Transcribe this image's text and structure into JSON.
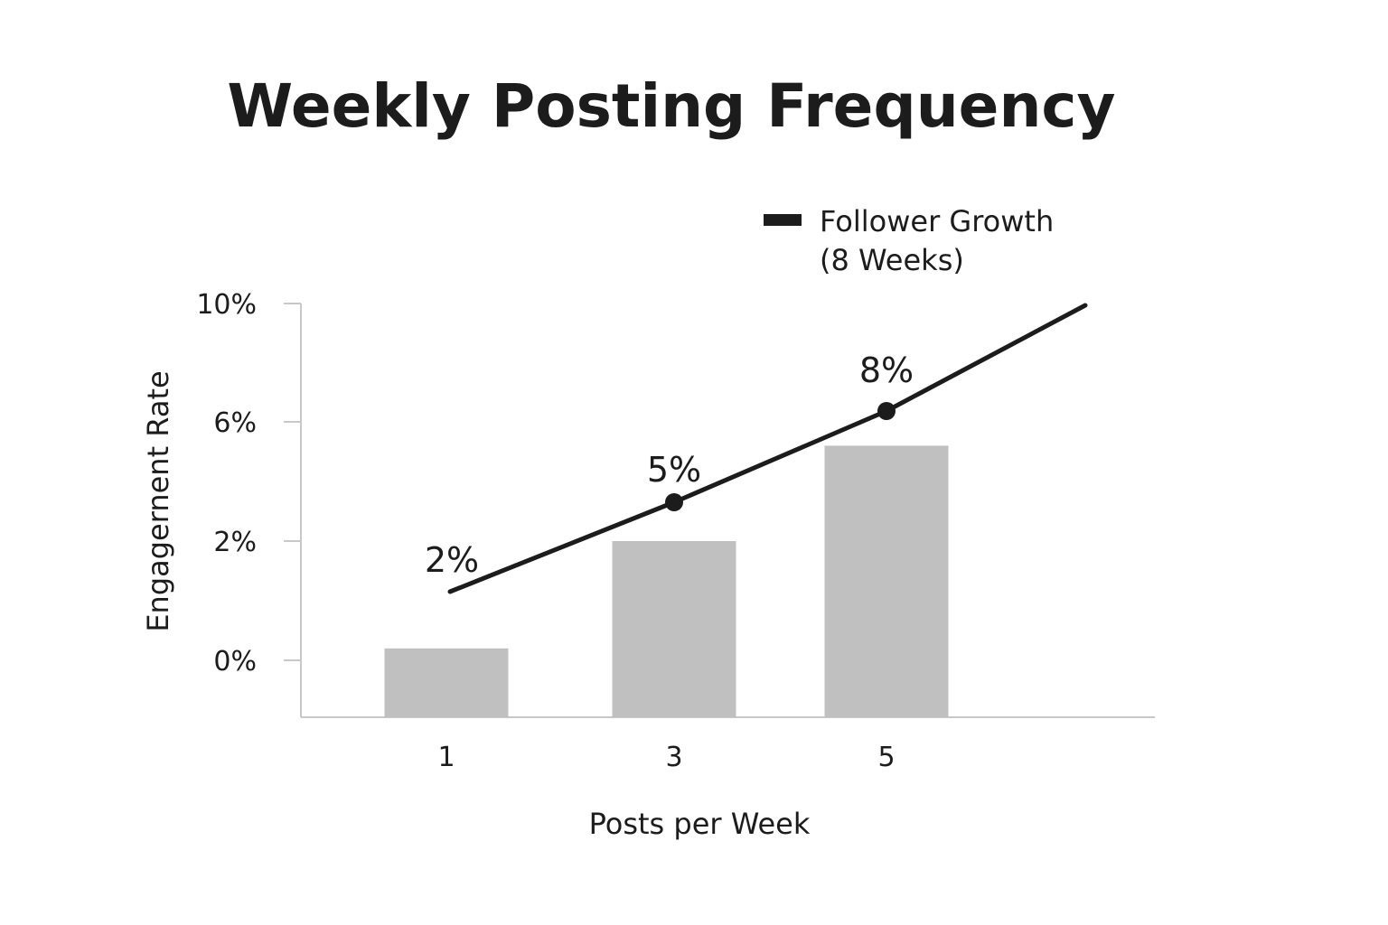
{
  "chart_data": {
    "type": "bar",
    "title": "Weekly Posting Frequency",
    "xlabel": "Posts per Week",
    "ylabel": "Engagernent Rate",
    "categories": [
      "1",
      "3",
      "5"
    ],
    "y_ticks": [
      "10%",
      "6%",
      "2%",
      "0%"
    ],
    "series": [
      {
        "type": "bar",
        "values": [
          0.2,
          2.0,
          5.2
        ],
        "color": "#c0c0c0"
      },
      {
        "type": "line",
        "name": "Follower Growth (8 Weeks)",
        "legend_lines": [
          "Follower Growth",
          "(8 Weeks)"
        ],
        "values": [
          2,
          5,
          8
        ],
        "labels": [
          "2%",
          "5%",
          "8%"
        ],
        "end_value": 9.9,
        "color": "#1c1c1c"
      }
    ],
    "legend_position": "top-right",
    "grid": false
  }
}
